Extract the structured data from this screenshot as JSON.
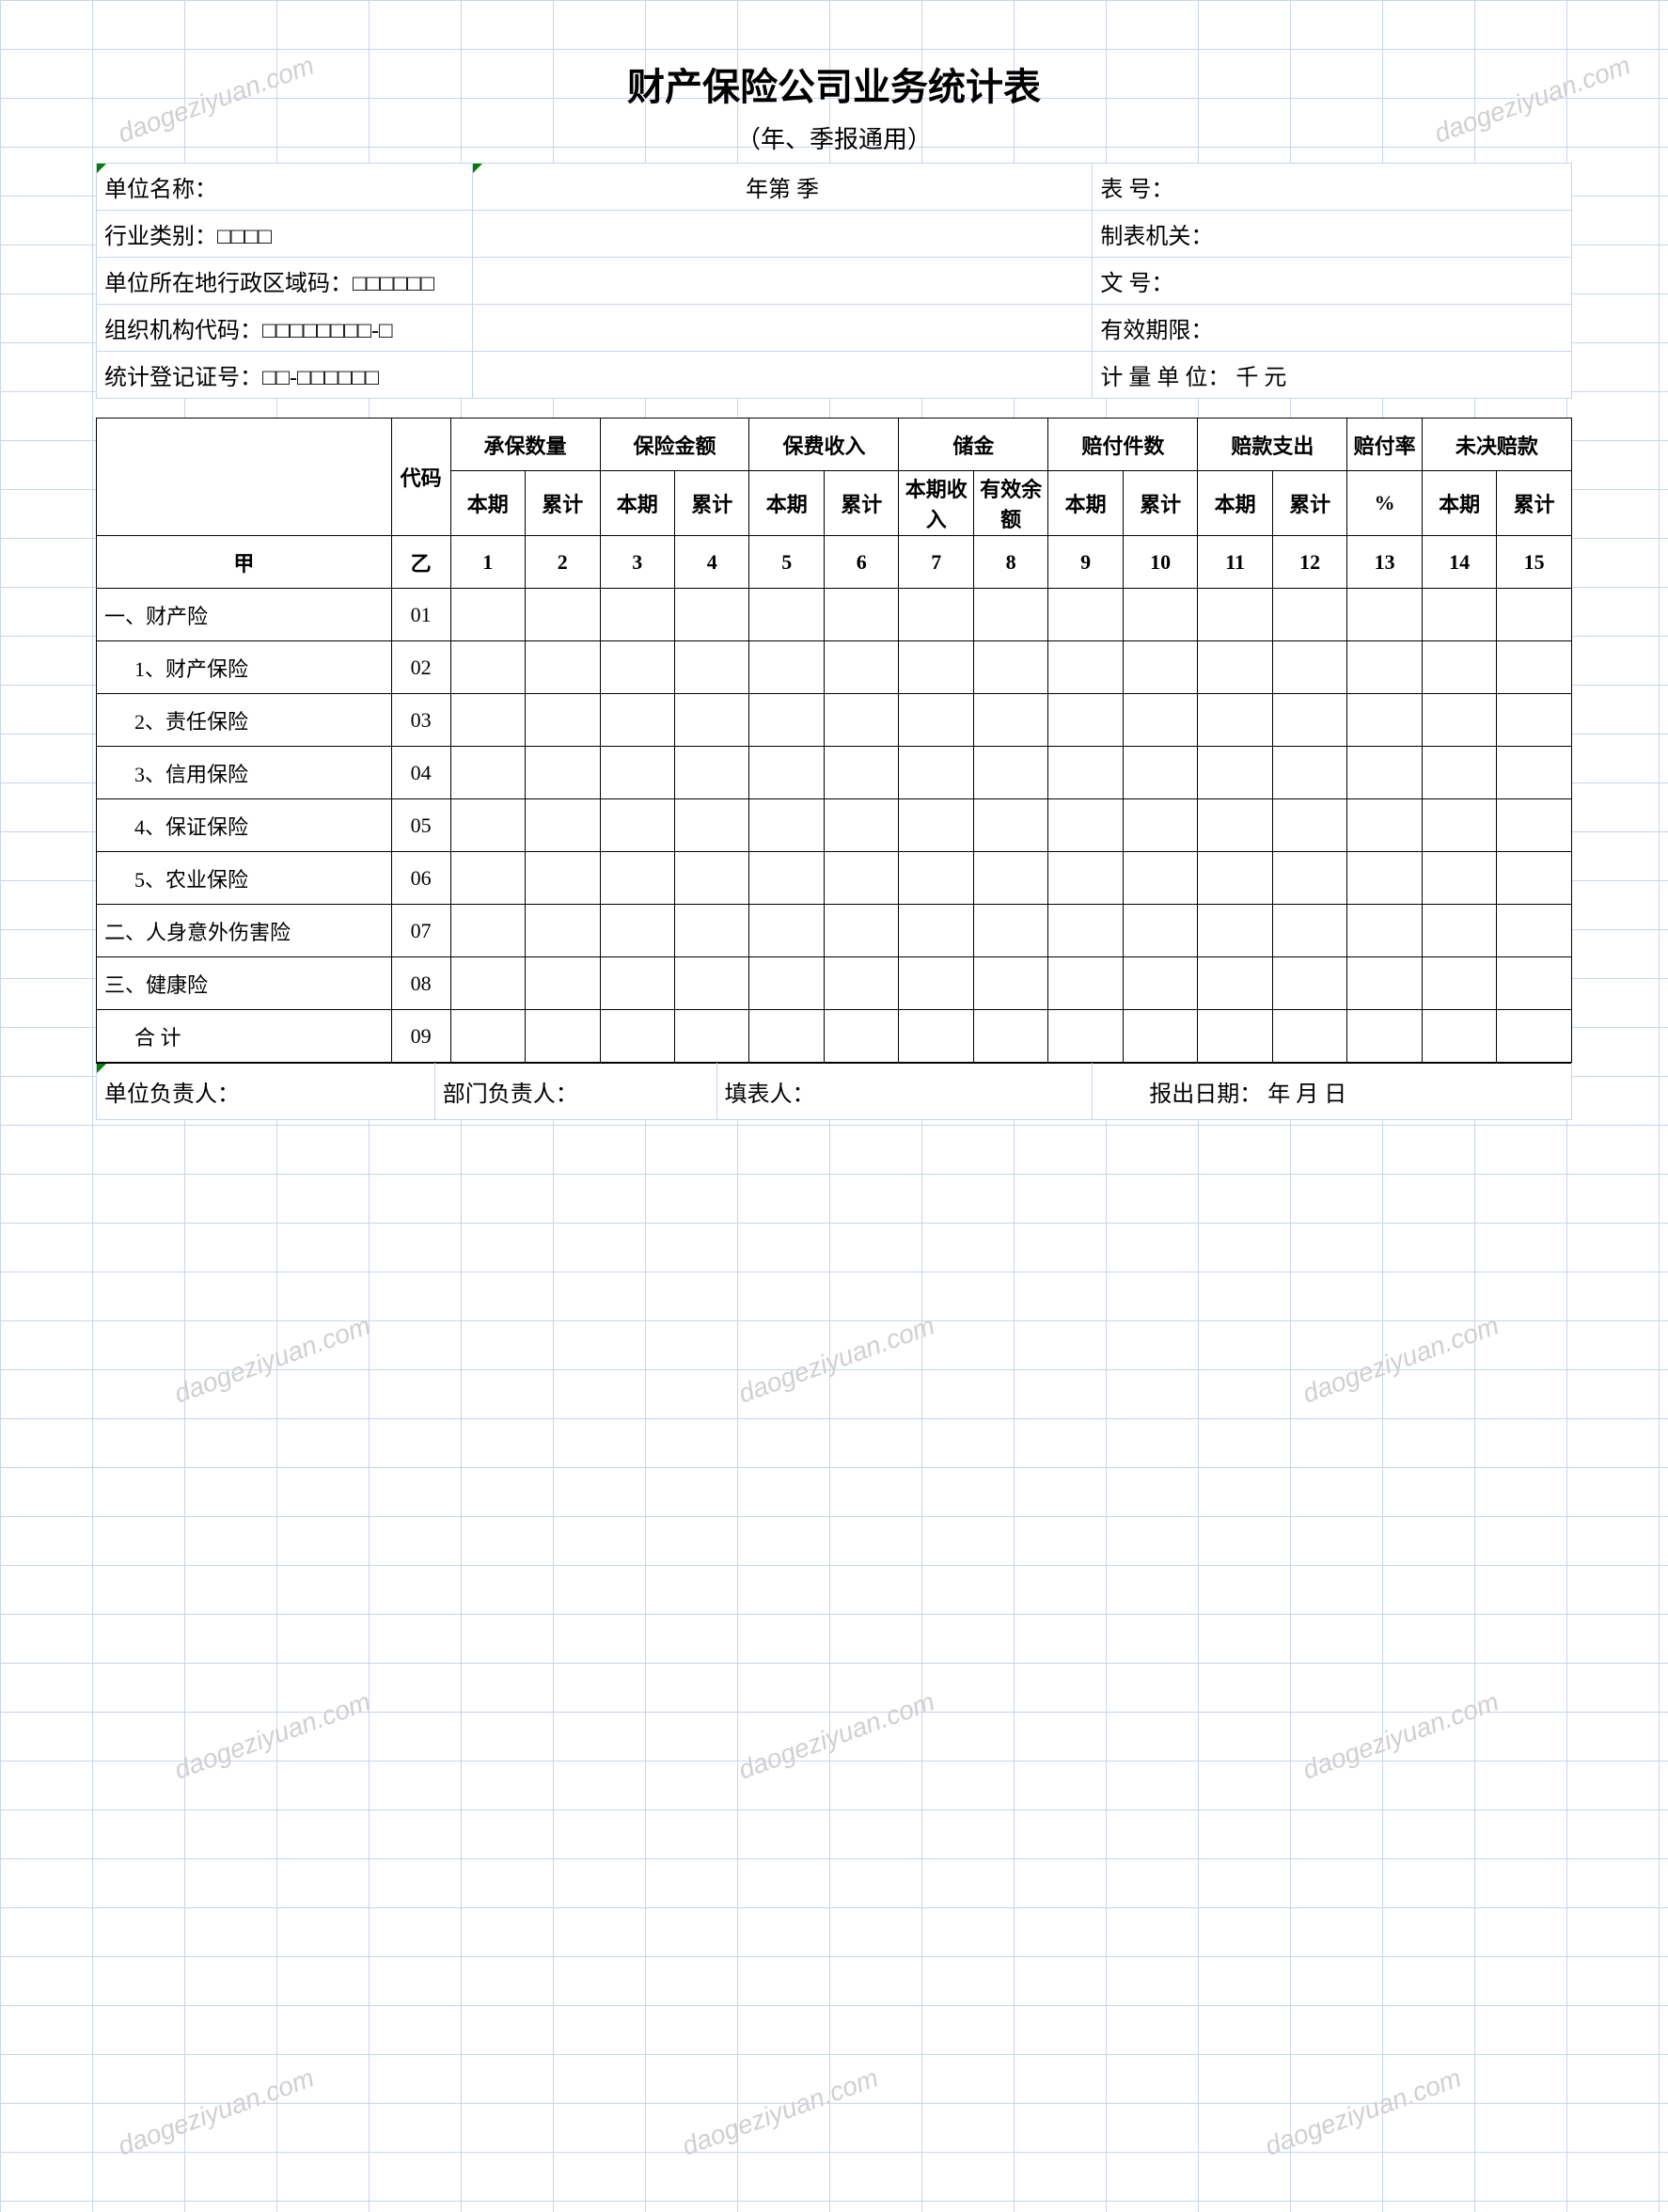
{
  "title": "财产保险公司业务统计表",
  "subtitle": "（年、季报通用）",
  "header": {
    "unit_name_label": "单位名称：",
    "period_label": "年第    季",
    "form_no_label": "表    号：",
    "industry_label": "行业类别：□□□□",
    "issuer_label": "制表机关：",
    "region_code_label": "单位所在地行政区域码：□□□□□□",
    "doc_no_label": "文    号：",
    "org_code_label": "组织机构代码：□□□□□□□□-□",
    "valid_period_label": "有效期限：",
    "stat_reg_label": "统计登记证号：□□-□□□□□□",
    "unit_label": "计 量 单 位： 千 元"
  },
  "columns": {
    "code": "代码",
    "group1": "承保数量",
    "group2": "保险金额",
    "group3": "保费收入",
    "group4": "储金",
    "group5": "赔付件数",
    "group6": "赔款支出",
    "group7": "赔付率",
    "group8": "未决赔款",
    "sub_current": "本期",
    "sub_cumulative": "累计",
    "sub_income": "本期收入",
    "sub_balance": "有效余额",
    "sub_percent": "%"
  },
  "index_row": {
    "jia": "甲",
    "yi": "乙",
    "nums": [
      "1",
      "2",
      "3",
      "4",
      "5",
      "6",
      "7",
      "8",
      "9",
      "10",
      "11",
      "12",
      "13",
      "14",
      "15"
    ]
  },
  "rows": [
    {
      "label": "一、财产险",
      "code": "01",
      "indent": false
    },
    {
      "label": "1、财产保险",
      "code": "02",
      "indent": true
    },
    {
      "label": "2、责任保险",
      "code": "03",
      "indent": true
    },
    {
      "label": "3、信用保险",
      "code": "04",
      "indent": true
    },
    {
      "label": "4、保证保险",
      "code": "05",
      "indent": true
    },
    {
      "label": "5、农业保险",
      "code": "06",
      "indent": true
    },
    {
      "label": "二、人身意外伤害险",
      "code": "07",
      "indent": false
    },
    {
      "label": "三、健康险",
      "code": "08",
      "indent": false
    },
    {
      "label": "合 计",
      "code": "09",
      "indent": true
    }
  ],
  "footer": {
    "unit_leader": "单位负责人：",
    "dept_leader": "部门负责人：",
    "filler": "填表人：",
    "report_date": "报出日期：    年  月  日"
  },
  "watermark_text": "daogeziyuan.com",
  "styling": {
    "grid_color": "#c8d4f0",
    "border_color": "#000000",
    "watermark_color": "#d0d0d0",
    "triangle_color": "#008000",
    "title_fontsize": 40,
    "body_fontsize": 24,
    "table_fontsize": 22
  }
}
